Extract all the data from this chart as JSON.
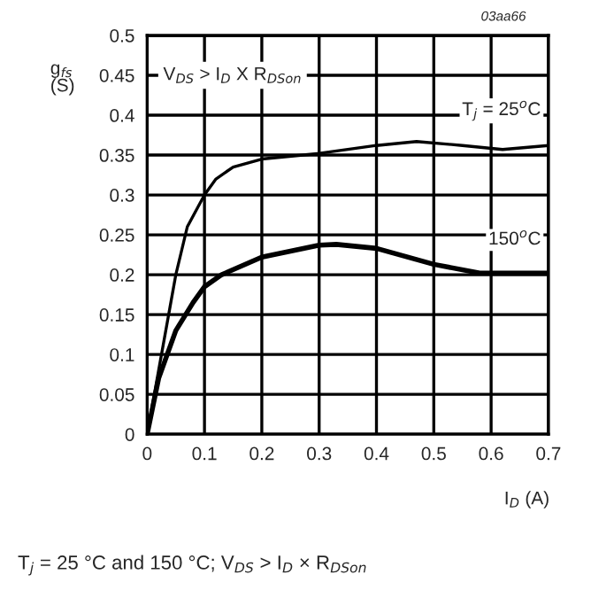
{
  "chart_data": {
    "type": "line",
    "series": [
      {
        "name": "T$_{j}$ = 25$^{o}$C",
        "color": "#000000",
        "x": [
          0,
          0.02,
          0.04,
          0.05,
          0.07,
          0.1,
          0.12,
          0.15,
          0.2,
          0.3,
          0.4,
          0.47,
          0.55,
          0.62,
          0.7
        ],
        "values": [
          0,
          0.08,
          0.16,
          0.2,
          0.26,
          0.3,
          0.32,
          0.335,
          0.345,
          0.352,
          0.362,
          0.367,
          0.362,
          0.357,
          0.362
        ]
      },
      {
        "name": "150$^{o}$C",
        "color": "#000000",
        "x": [
          0,
          0.02,
          0.05,
          0.08,
          0.1,
          0.13,
          0.2,
          0.3,
          0.33,
          0.4,
          0.5,
          0.58,
          0.7
        ],
        "values": [
          0,
          0.07,
          0.13,
          0.165,
          0.185,
          0.2,
          0.222,
          0.237,
          0.238,
          0.233,
          0.213,
          0.202,
          0.202
        ]
      }
    ],
    "xlabel": "I$_{D}$ (A)",
    "ylabel": "g$_{fs}$\n(S)",
    "xlim": [
      0,
      0.7
    ],
    "xticks": [
      0,
      0.1,
      0.2,
      0.3,
      0.4,
      0.5,
      0.6,
      0.7
    ],
    "ylim": [
      0,
      0.5
    ],
    "yticks": [
      0,
      0.05,
      0.1,
      0.15,
      0.2,
      0.25,
      0.3,
      0.35,
      0.4,
      0.45,
      0.5
    ],
    "grid": true,
    "legend": false,
    "marker": "none",
    "line_style": "solid",
    "annotations": [
      "V$_{DS}$ > I$_{D}$ X R$_{DSon}$",
      "03aa66",
      "T$_{j}$ = 25 °C and 150 °C; V$_{DS}$ > I$_{D}$ × R$_{DSon}$"
    ]
  }
}
